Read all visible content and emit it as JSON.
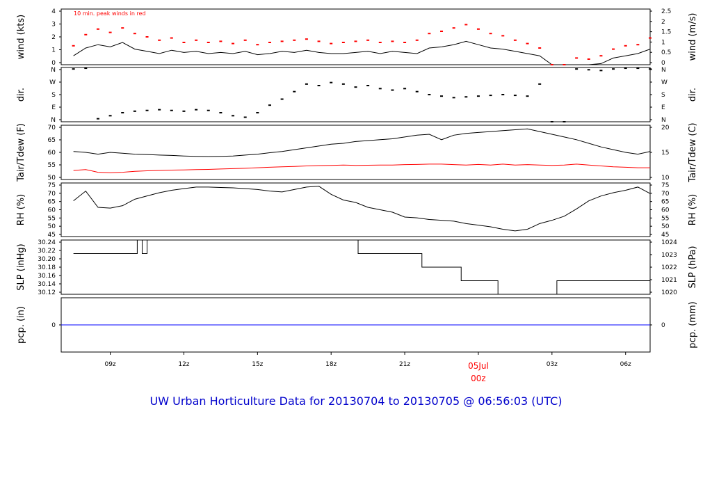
{
  "title": "UW Urban Horticulture Data for 20130704  to  20130705 @ 06:56:03  (UTC)",
  "colors": {
    "axis": "#000000",
    "series_primary": "#000000",
    "series_secondary": "#ff0000",
    "precip": "#0000ff",
    "title": "#0000cc"
  },
  "chart_data": [
    {
      "type": "line",
      "panel": "wind",
      "ylabel_left": "wind (kts)",
      "ylabel_right": "wind (m/s)",
      "annotation": "10 min. peak winds in red",
      "ylim": [
        0,
        5
      ],
      "yticks_left": [
        "0",
        "1",
        "2",
        "3",
        "4"
      ],
      "yticks_right": [
        "0",
        "0.5",
        "1",
        "1.5",
        "2",
        "2.5"
      ],
      "x": [
        7.5,
        8.0,
        8.5,
        9.0,
        9.5,
        10.0,
        10.5,
        11.0,
        11.5,
        12.0,
        12.5,
        13.0,
        13.5,
        14.0,
        14.5,
        15.0,
        15.5,
        16.0,
        16.5,
        17.0,
        17.5,
        18.0,
        18.5,
        19.0,
        19.5,
        20.0,
        20.5,
        21.0,
        21.5,
        22.0,
        22.5,
        23.0,
        23.5,
        24.0,
        24.5,
        25.0,
        25.5,
        26.0,
        26.5,
        27.0,
        27.5,
        28.0,
        28.5,
        29.0,
        29.5,
        30.0,
        30.5,
        31.0
      ],
      "series": [
        {
          "values": [
            0.8,
            1.5,
            1.8,
            1.6,
            2.0,
            1.4,
            1.2,
            1.0,
            1.3,
            1.1,
            1.2,
            1.0,
            1.1,
            1.0,
            1.2,
            0.9,
            1.0,
            1.2,
            1.1,
            1.3,
            1.1,
            1.0,
            1.0,
            1.1,
            1.2,
            1.0,
            1.2,
            1.1,
            1.0,
            1.5,
            1.6,
            1.8,
            2.1,
            1.8,
            1.5,
            1.4,
            1.2,
            1.0,
            0.8,
            0.0,
            0.0,
            0.0,
            0.0,
            0.1,
            0.6,
            0.8,
            1.0,
            1.4
          ]
        },
        {
          "values": [
            1.7,
            2.7,
            3.2,
            2.9,
            3.3,
            2.8,
            2.5,
            2.2,
            2.4,
            2.0,
            2.2,
            2.0,
            2.1,
            1.9,
            2.2,
            1.8,
            2.0,
            2.1,
            2.2,
            2.3,
            2.1,
            1.9,
            2.0,
            2.1,
            2.2,
            2.0,
            2.1,
            2.0,
            2.2,
            2.8,
            3.0,
            3.3,
            3.6,
            3.2,
            2.8,
            2.6,
            2.2,
            1.9,
            1.5,
            0.0,
            0.0,
            0.6,
            0.5,
            0.8,
            1.4,
            1.7,
            1.8,
            2.4
          ]
        }
      ]
    },
    {
      "type": "scatter",
      "panel": "direction",
      "ylabel_left": "dir.",
      "ylabel_right": "dir.",
      "ylim": [
        0,
        360
      ],
      "yticks_left": [
        "N",
        "E",
        "S",
        "W",
        "N"
      ],
      "yticks_right": [
        "N",
        "E",
        "S",
        "W",
        "N"
      ],
      "x": [
        7.5,
        8.0,
        8.5,
        9.0,
        9.5,
        10.0,
        10.5,
        11.0,
        11.5,
        12.0,
        12.5,
        13.0,
        13.5,
        14.0,
        14.5,
        15.0,
        15.5,
        16.0,
        16.5,
        17.0,
        17.5,
        18.0,
        18.5,
        19.0,
        19.5,
        20.0,
        20.5,
        21.0,
        21.5,
        22.0,
        22.5,
        23.0,
        23.5,
        24.0,
        24.5,
        25.0,
        25.5,
        26.0,
        26.5,
        27.0,
        27.5,
        28.0,
        28.5,
        29.0,
        29.5,
        30.0,
        30.5,
        31.0
      ],
      "values": [
        350,
        355,
        20,
        40,
        60,
        70,
        75,
        80,
        75,
        70,
        80,
        75,
        60,
        40,
        30,
        60,
        110,
        150,
        200,
        250,
        240,
        260,
        250,
        230,
        240,
        220,
        210,
        220,
        200,
        180,
        170,
        160,
        165,
        170,
        175,
        180,
        175,
        170,
        250,
        0,
        0,
        350,
        345,
        340,
        350,
        355,
        355,
        350
      ]
    },
    {
      "type": "line",
      "panel": "temperature",
      "ylabel_left": "Tair/Tdew (F)",
      "ylabel_right": "Tair/Tdew (C)",
      "ylim": [
        45,
        75
      ],
      "yticks_left": [
        "50",
        "55",
        "60",
        "65",
        "70"
      ],
      "yticks_right": [
        "10",
        "15",
        "20"
      ],
      "x": [
        7.5,
        8.0,
        8.5,
        9.0,
        9.5,
        10.0,
        10.5,
        11.0,
        11.5,
        12.0,
        12.5,
        13.0,
        13.5,
        14.0,
        14.5,
        15.0,
        15.5,
        16.0,
        16.5,
        17.0,
        17.5,
        18.0,
        18.5,
        19.0,
        19.5,
        20.0,
        20.5,
        21.0,
        21.5,
        22.0,
        22.5,
        23.0,
        23.5,
        24.0,
        24.5,
        25.0,
        25.5,
        26.0,
        26.5,
        27.0,
        27.5,
        28.0,
        28.5,
        29.0,
        29.5,
        30.0,
        30.5,
        31.0
      ],
      "series": [
        {
          "name": "Tair",
          "values": [
            60.5,
            60.0,
            59.0,
            60.0,
            59.5,
            59.0,
            58.8,
            58.5,
            58.3,
            58.0,
            57.8,
            57.7,
            57.8,
            58.0,
            58.5,
            59.0,
            59.8,
            60.5,
            61.5,
            62.5,
            63.5,
            64.5,
            65.0,
            66.0,
            66.5,
            67.0,
            67.5,
            68.5,
            69.5,
            70.0,
            67.0,
            69.5,
            70.5,
            71.0,
            71.5,
            72.0,
            72.5,
            73.0,
            71.5,
            70.0,
            68.5,
            67.0,
            65.0,
            63.0,
            61.5,
            60.0,
            59.0,
            60.5
          ]
        },
        {
          "name": "Tdew",
          "values": [
            50.0,
            50.5,
            49.0,
            48.7,
            49.0,
            49.5,
            49.8,
            50.0,
            50.2,
            50.3,
            50.5,
            50.6,
            50.8,
            51.0,
            51.2,
            51.5,
            51.8,
            52.0,
            52.2,
            52.5,
            52.7,
            52.8,
            53.0,
            52.8,
            52.9,
            53.0,
            53.0,
            53.2,
            53.3,
            53.5,
            53.5,
            53.2,
            53.0,
            53.3,
            53.0,
            53.5,
            53.0,
            53.2,
            53.0,
            52.8,
            53.0,
            53.5,
            53.0,
            52.5,
            52.0,
            51.8,
            51.5,
            51.5
          ]
        }
      ]
    },
    {
      "type": "line",
      "panel": "rh",
      "ylabel_left": "RH (%)",
      "ylabel_right": "RH (%)",
      "ylim": [
        45,
        78
      ],
      "yticks_left": [
        "45",
        "50",
        "55",
        "60",
        "65",
        "70",
        "75"
      ],
      "yticks_right": [
        "45",
        "50",
        "55",
        "60",
        "65",
        "70",
        "75"
      ],
      "x": [
        7.5,
        8.0,
        8.5,
        9.0,
        9.5,
        10.0,
        10.5,
        11.0,
        11.5,
        12.0,
        12.5,
        13.0,
        13.5,
        14.0,
        14.5,
        15.0,
        15.5,
        16.0,
        16.5,
        17.0,
        17.5,
        18.0,
        18.5,
        19.0,
        19.5,
        20.0,
        20.5,
        21.0,
        21.5,
        22.0,
        22.5,
        23.0,
        23.5,
        24.0,
        24.5,
        25.0,
        25.5,
        26.0,
        26.5,
        27.0,
        27.5,
        28.0,
        28.5,
        29.0,
        29.5,
        30.0,
        30.5,
        31.0
      ],
      "values": [
        67.0,
        73.0,
        63.0,
        62.5,
        64.0,
        68.0,
        70.0,
        72.0,
        73.5,
        74.5,
        75.5,
        75.5,
        75.2,
        75.0,
        74.5,
        74.0,
        73.0,
        72.5,
        74.0,
        75.5,
        76.0,
        71.0,
        67.5,
        66.0,
        63.0,
        61.5,
        60.0,
        57.0,
        56.5,
        55.5,
        55.0,
        54.5,
        53.0,
        52.0,
        51.0,
        49.5,
        48.5,
        49.5,
        53.0,
        55.0,
        57.5,
        62.0,
        67.0,
        70.0,
        72.0,
        73.5,
        75.5,
        71.5
      ]
    },
    {
      "type": "line",
      "panel": "pressure",
      "ylabel_left": "SLP (inHg)",
      "ylabel_right": "SLP (hPa)",
      "ylim": [
        30.12,
        30.24
      ],
      "yticks_left": [
        "30.12",
        "30.14",
        "30.16",
        "30.18",
        "30.20",
        "30.22",
        "30.24"
      ],
      "yticks_right": [
        "1020",
        "1021",
        "1022",
        "1023",
        "1024"
      ],
      "x": [
        7.5,
        10.0,
        10.1,
        10.3,
        10.5,
        19.1,
        21.7,
        23.3,
        24.8,
        27.2,
        31.0
      ],
      "values": [
        30.21,
        30.21,
        30.24,
        30.21,
        30.24,
        30.21,
        30.18,
        30.15,
        30.12,
        30.15,
        30.15
      ]
    },
    {
      "type": "line",
      "panel": "precipitation",
      "ylabel_left": "pcp. (in)",
      "ylabel_right": "pcp. (mm)",
      "ylim": [
        -1,
        1
      ],
      "yticks_left": [
        "0"
      ],
      "yticks_right": [
        "0"
      ],
      "x": [
        7.0,
        31.0
      ],
      "values": [
        0,
        0
      ]
    }
  ],
  "x_axis": {
    "ticks": [
      {
        "label": "09z",
        "x": 9
      },
      {
        "label": "12z",
        "x": 12
      },
      {
        "label": "15z",
        "x": 15
      },
      {
        "label": "18z",
        "x": 18
      },
      {
        "label": "21z",
        "x": 21
      },
      {
        "label": "03z",
        "x": 27
      },
      {
        "label": "06z",
        "x": 30
      }
    ],
    "date_marker": {
      "date": "05Jul",
      "time": "00z",
      "x": 24
    },
    "xlim": [
      7.0,
      31.0
    ]
  }
}
